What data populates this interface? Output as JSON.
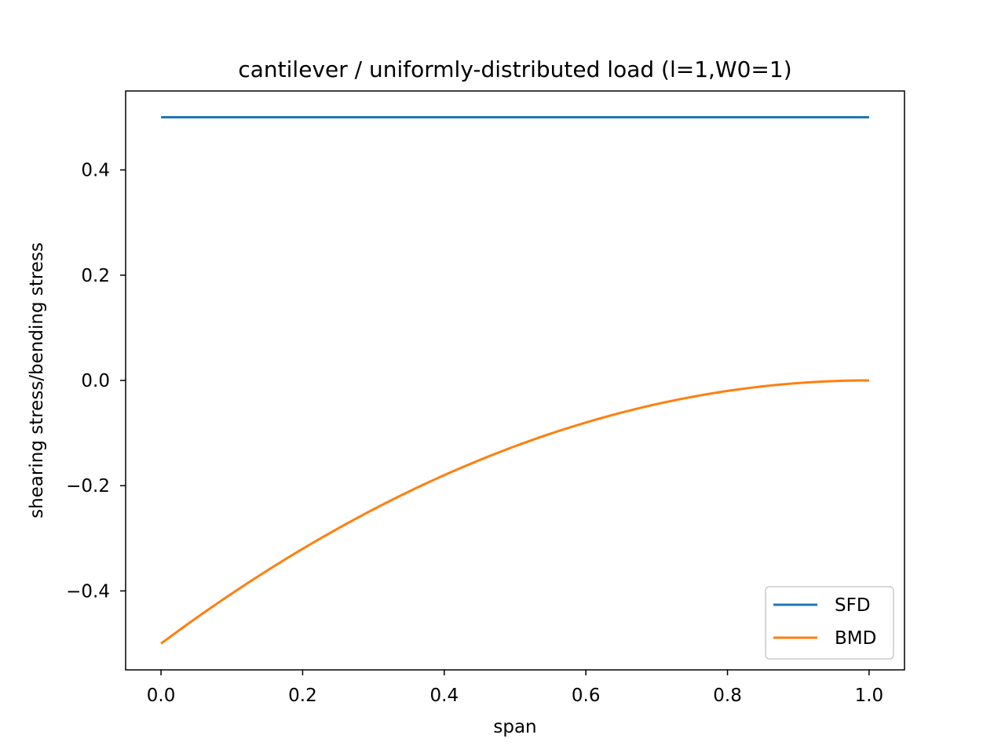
{
  "chart_data": {
    "type": "line",
    "title": "cantilever / uniformly-distributed load (l=1,W0=1)",
    "xlabel": "span",
    "ylabel": "shearing stress/bending stress",
    "xlim": [
      -0.05,
      1.05
    ],
    "ylim": [
      -0.55,
      0.55
    ],
    "xticks": [
      0.0,
      0.2,
      0.4,
      0.6,
      0.8,
      1.0
    ],
    "xtick_labels": [
      "0.0",
      "0.2",
      "0.4",
      "0.6",
      "0.8",
      "1.0"
    ],
    "yticks": [
      -0.4,
      -0.2,
      0.0,
      0.2,
      0.4
    ],
    "ytick_labels": [
      "−0.4",
      "−0.2",
      "0.0",
      "0.2",
      "0.4"
    ],
    "grid": false,
    "legend_position": "lower-right",
    "series": [
      {
        "name": "SFD",
        "color": "#1f77b4",
        "x": [
          0.0,
          0.1,
          0.2,
          0.3,
          0.4,
          0.5,
          0.6,
          0.7,
          0.8,
          0.9,
          1.0
        ],
        "y": [
          0.5,
          0.5,
          0.5,
          0.5,
          0.5,
          0.5,
          0.5,
          0.5,
          0.5,
          0.5,
          0.5
        ]
      },
      {
        "name": "BMD",
        "color": "#ff7f0e",
        "x": [
          0.0,
          0.1,
          0.2,
          0.3,
          0.4,
          0.5,
          0.6,
          0.7,
          0.8,
          0.9,
          1.0
        ],
        "y": [
          -0.5,
          -0.405,
          -0.32,
          -0.245,
          -0.18,
          -0.125,
          -0.08,
          -0.045,
          -0.02,
          -0.005,
          0.0
        ]
      }
    ]
  }
}
